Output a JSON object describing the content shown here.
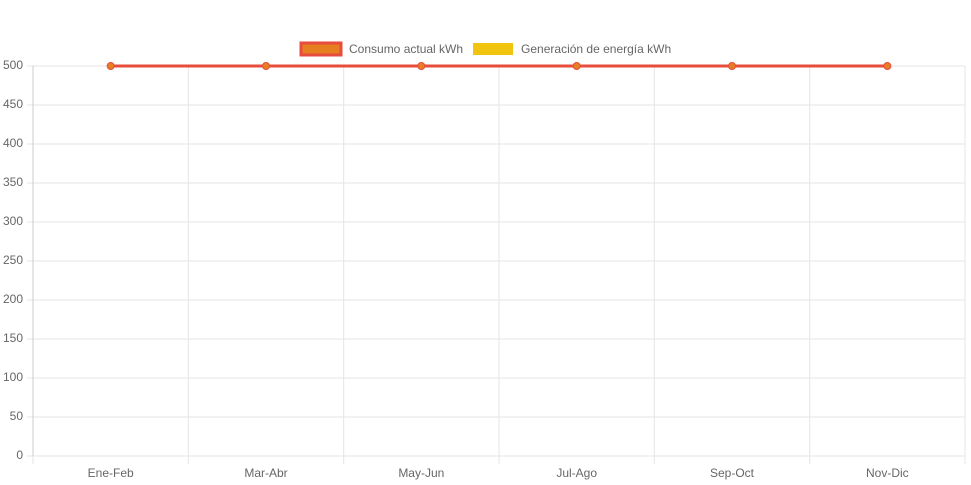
{
  "chart_data": {
    "type": "line",
    "categories": [
      "Ene-Feb",
      "Mar-Abr",
      "May-Jun",
      "Jul-Ago",
      "Sep-Oct",
      "Nov-Dic"
    ],
    "series": [
      {
        "name": "Consumo actual kWh",
        "color": "#e74c3c",
        "point_color": "#e67e22",
        "values": [
          500,
          500,
          500,
          500,
          500,
          500
        ]
      },
      {
        "name": "Generación de energía kWh",
        "color": "#f1c40f",
        "values": [
          null,
          null,
          null,
          null,
          null,
          null
        ]
      }
    ],
    "ylim": [
      0,
      500
    ],
    "yticks": [
      0,
      50,
      100,
      150,
      200,
      250,
      300,
      350,
      400,
      450,
      500
    ],
    "grid": true,
    "legend": "top"
  }
}
